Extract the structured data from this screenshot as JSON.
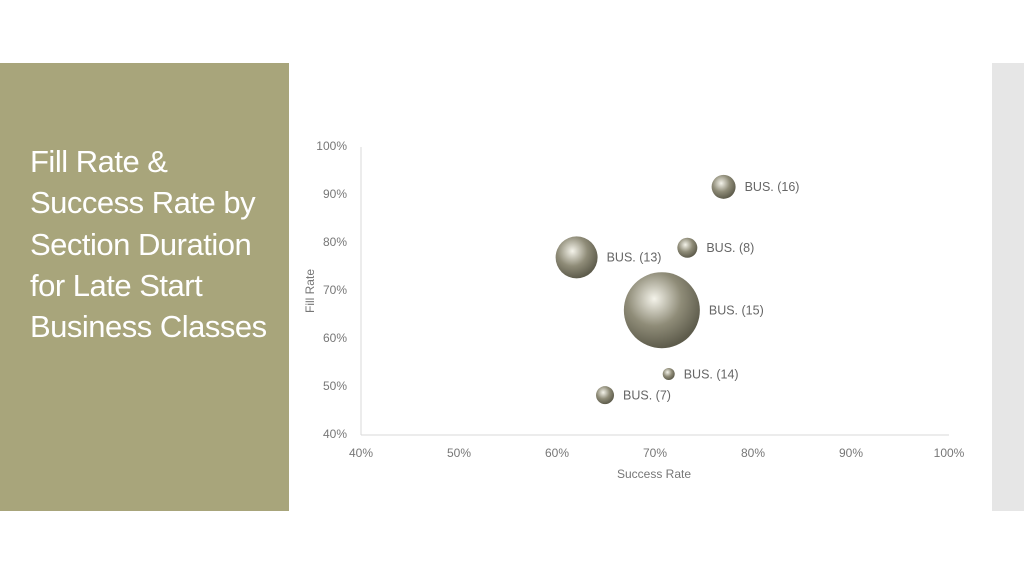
{
  "chart_data": {
    "type": "bubble",
    "title": "Fill Rate & Success Rate by Section Duration for Late Start Business Classes",
    "x_label": "Success Rate",
    "y_label": "Fill Rate",
    "xlim": [
      40,
      100
    ],
    "ylim": [
      40,
      100
    ],
    "xticks": [
      {
        "value": 40,
        "label": "40%"
      },
      {
        "value": 50,
        "label": "50%"
      },
      {
        "value": 60,
        "label": "60%"
      },
      {
        "value": 70,
        "label": "70%"
      },
      {
        "value": 80,
        "label": "80%"
      },
      {
        "value": 90,
        "label": "90%"
      },
      {
        "value": 100,
        "label": "100%"
      }
    ],
    "yticks": [
      {
        "value": 40,
        "label": "40%"
      },
      {
        "value": 50,
        "label": "50%"
      },
      {
        "value": 60,
        "label": "60%"
      },
      {
        "value": 70,
        "label": "70%"
      },
      {
        "value": 80,
        "label": "80%"
      },
      {
        "value": 90,
        "label": "90%"
      },
      {
        "value": 100,
        "label": "100%"
      }
    ],
    "grid": false,
    "series": [
      {
        "color": "#8f8c78",
        "labels": [
          "BUS. (16)",
          "BUS. (8)",
          "BUS. (13)",
          "BUS. (15)",
          "BUS. (14)",
          "BUS. (7)"
        ],
        "x": [
          77,
          73.3,
          62,
          70.7,
          71.4,
          64.9
        ],
        "y": [
          91.7,
          79,
          77,
          66,
          52.7,
          48.3
        ],
        "size": [
          144,
          100,
          441,
          1444,
          36,
          81
        ]
      }
    ]
  }
}
